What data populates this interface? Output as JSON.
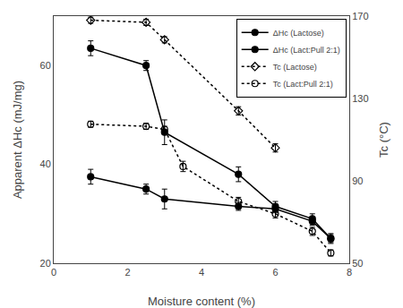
{
  "chart_data": {
    "type": "line",
    "title": "",
    "xlabel": "Moisture content (%)",
    "ylabel": "Apparent ΔHc (mJ/mg)",
    "y2label": "Tc (°C)",
    "xlim": [
      0,
      8
    ],
    "ylim": [
      20,
      70
    ],
    "y2lim": [
      50,
      170
    ],
    "xticks": [
      0,
      2,
      4,
      6,
      8
    ],
    "yticks": [
      20,
      40,
      60
    ],
    "y2ticks": [
      50,
      90,
      130,
      170
    ],
    "grid": false,
    "legend": "upper right",
    "series": [
      {
        "name": "ΔHc (Lactose)",
        "axis": "y",
        "color": "black",
        "marker": "circle",
        "line_style": "solid",
        "x": [
          1.0,
          2.5,
          3.0,
          5.0,
          6.0,
          7.0,
          7.5
        ],
        "values": [
          63.5,
          60.0,
          46.5,
          38.0,
          31.5,
          29.0,
          25.0
        ],
        "error": [
          1.5,
          1.0,
          2.5,
          1.5,
          1.0,
          1.0,
          1.0
        ]
      },
      {
        "name": "ΔHc (Lact:Pull 2:1)",
        "axis": "y",
        "color": "black",
        "marker": "circle",
        "line_style": "solid",
        "x": [
          1.0,
          2.5,
          3.0,
          5.0,
          6.0,
          7.0,
          7.5
        ],
        "values": [
          37.5,
          35.0,
          33.0,
          31.5,
          31.0,
          28.5,
          25.0
        ],
        "error": [
          1.5,
          1.0,
          2.0,
          0.8,
          0.8,
          0.8,
          0.8
        ]
      },
      {
        "name": "Tc (Lactose)",
        "axis": "y2",
        "color": "black",
        "marker": "diamond-open",
        "line_style": "dotted",
        "x": [
          1.0,
          2.5,
          3.0,
          5.0,
          6.0
        ],
        "values": [
          168.0,
          167.0,
          158.5,
          124.0,
          106.0
        ],
        "error": [
          1.5,
          1.5,
          1.5,
          2.0,
          2.0
        ]
      },
      {
        "name": "Tc (Lact:Pull 2:1)",
        "axis": "y2",
        "color": "black",
        "marker": "circle-open",
        "line_style": "dotted",
        "x": [
          1.0,
          2.5,
          3.0,
          3.5,
          5.0,
          6.0,
          7.0,
          7.5
        ],
        "values": [
          117.5,
          116.5,
          115.0,
          97.0,
          80.0,
          74.0,
          65.5,
          55.0
        ],
        "error": [
          1.5,
          1.5,
          1.5,
          2.5,
          2.0,
          2.0,
          2.0,
          1.5
        ]
      }
    ]
  }
}
